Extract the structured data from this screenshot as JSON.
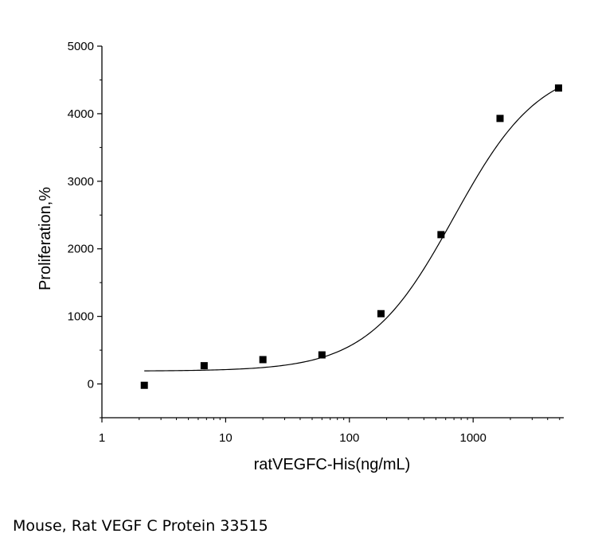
{
  "caption": "Mouse, Rat VEGF C Protein 33515",
  "chart_data": {
    "type": "scatter",
    "title": "",
    "xlabel": "ratVEGFC-His(ng/mL)",
    "ylabel": "Proliferation,%",
    "x_scale": "log",
    "xlim": [
      1,
      5400
    ],
    "ylim": [
      -500,
      5000
    ],
    "x_ticks": [
      1,
      10,
      100,
      1000
    ],
    "x_tick_labels": [
      "1",
      "10",
      "100",
      "1000"
    ],
    "y_ticks": [
      0,
      1000,
      2000,
      3000,
      4000,
      5000
    ],
    "y_tick_labels": [
      "0",
      "1000",
      "2000",
      "3000",
      "4000",
      "5000"
    ],
    "grid": false,
    "series": [
      {
        "x": [
          2.2,
          6.7,
          20,
          60,
          180,
          550,
          1650,
          4900
        ],
        "y": [
          -20,
          270,
          360,
          430,
          1040,
          2210,
          3930,
          4380
        ]
      }
    ],
    "fit_curve": {
      "type": "4PL",
      "bottom": 190,
      "top": 4750,
      "ec50": 700,
      "hill": 1.25,
      "x_range": [
        2.2,
        4900
      ]
    }
  }
}
